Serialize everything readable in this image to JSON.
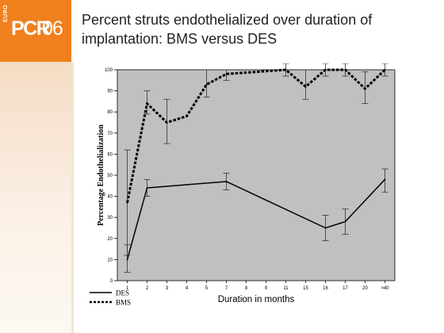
{
  "header": {
    "logo": {
      "prefix": "EURO",
      "main": "PCR",
      "year": "06",
      "color": "#f0801e"
    },
    "title": "Percent struts  endothelialized over duration of implantation: BMS versus DES"
  },
  "chart_data": {
    "type": "line",
    "title": "",
    "xlabel": "Duration in months",
    "ylabel": "Percentage Endothelialization",
    "categories": [
      "1",
      "2",
      "3",
      "4",
      "5",
      "7",
      "8",
      "9",
      "11",
      "15",
      "16",
      "17",
      "20",
      ">40"
    ],
    "ylim": [
      0,
      100
    ],
    "yticks": [
      0,
      10,
      20,
      30,
      40,
      50,
      60,
      70,
      80,
      90,
      100
    ],
    "grid": false,
    "plot_background": "#c0c0c0",
    "legend_position": "bottom-left",
    "series": [
      {
        "name": "DES",
        "line_style": "solid",
        "color": "#000000",
        "points": [
          {
            "x": "1",
            "y": 10,
            "err_low": 4,
            "err_high": 17
          },
          {
            "x": "2",
            "y": 44,
            "err_low": 40,
            "err_high": 48
          },
          {
            "x": "7",
            "y": 47,
            "err_low": 43,
            "err_high": 51
          },
          {
            "x": "16",
            "y": 25,
            "err_low": 19,
            "err_high": 31
          },
          {
            "x": "17",
            "y": 28,
            "err_low": 22,
            "err_high": 34
          },
          {
            "x": ">40",
            "y": 48,
            "err_low": 42,
            "err_high": 53
          }
        ]
      },
      {
        "name": "BMS",
        "line_style": "dashed",
        "color": "#000000",
        "points": [
          {
            "x": "1",
            "y": 37,
            "err_low": 12,
            "err_high": 62
          },
          {
            "x": "2",
            "y": 84,
            "err_low": 79,
            "err_high": 90
          },
          {
            "x": "3",
            "y": 75,
            "err_low": 65,
            "err_high": 86
          },
          {
            "x": "4",
            "y": 78
          },
          {
            "x": "5",
            "y": 93,
            "err_low": 87,
            "err_high": 100
          },
          {
            "x": "7",
            "y": 98,
            "err_low": 95,
            "err_high": 100
          },
          {
            "x": "11",
            "y": 100,
            "err_low": 97,
            "err_high": 103
          },
          {
            "x": "15",
            "y": 92,
            "err_low": 86,
            "err_high": 100
          },
          {
            "x": "16",
            "y": 100,
            "err_low": 97,
            "err_high": 103
          },
          {
            "x": "17",
            "y": 100,
            "err_low": 97,
            "err_high": 103
          },
          {
            "x": "20",
            "y": 91,
            "err_low": 84,
            "err_high": 99
          },
          {
            "x": ">40",
            "y": 100,
            "err_low": 97,
            "err_high": 103
          }
        ]
      }
    ]
  }
}
